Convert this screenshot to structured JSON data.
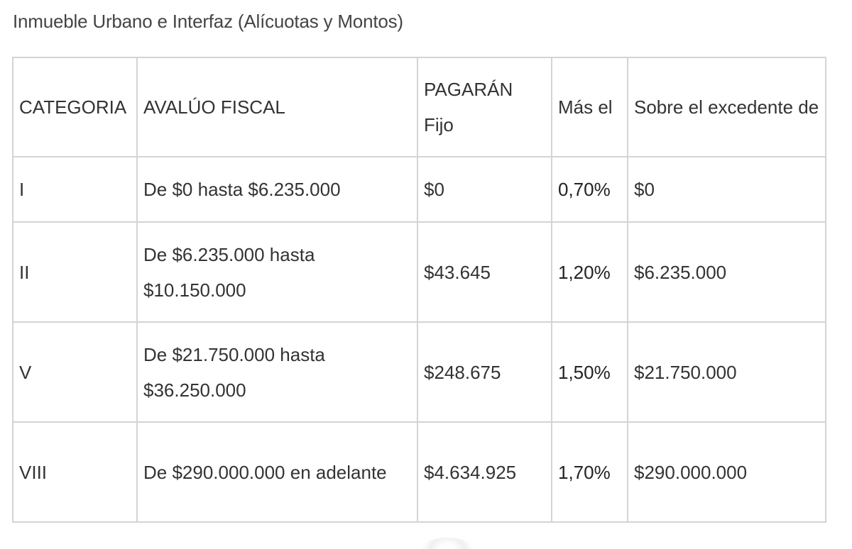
{
  "caption": "Inmueble Urbano e Interfaz (Alícuotas y Montos)",
  "table": {
    "headers": [
      "CATEGORIA",
      "AVALÚO FISCAL",
      "PAGARÁN Fijo",
      "Más el",
      "Sobre el excedente de"
    ],
    "rows": [
      {
        "categoria": "I",
        "avaluo": "De $0 hasta $6.235.000",
        "fijo": "$0",
        "alicuota": "0,70%",
        "excedente": "$0"
      },
      {
        "categoria": "II",
        "avaluo": "De $6.235.000 hasta $10.150.000",
        "fijo": "$43.645",
        "alicuota": "1,20%",
        "excedente": "$6.235.000"
      },
      {
        "categoria": "V",
        "avaluo": "De $21.750.000 hasta $36.250.000",
        "fijo": "$248.675",
        "alicuota": "1,50%",
        "excedente": "$21.750.000"
      },
      {
        "categoria": "VIII",
        "avaluo": "De $290.000.000 en adelante",
        "fijo": "$4.634.925",
        "alicuota": "1,70%",
        "excedente": "$290.000.000"
      }
    ]
  }
}
